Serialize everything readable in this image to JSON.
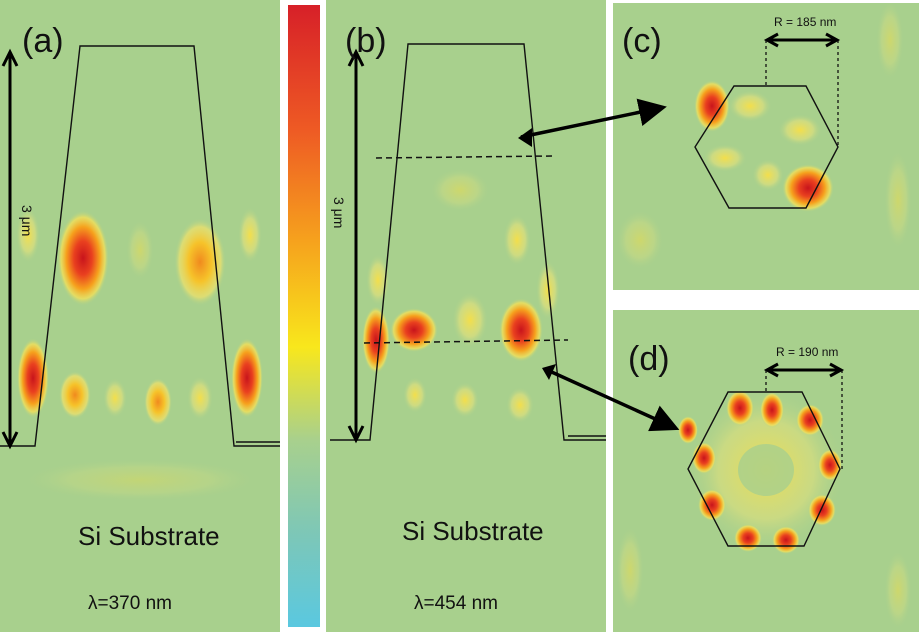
{
  "panels": {
    "a": {
      "label": "(a)",
      "scale": "3 μm",
      "substrate": "Si Substrate",
      "wavelength": "λ=370 nm"
    },
    "b": {
      "label": "(b)",
      "scale": "3 μm",
      "substrate": "Si Substrate",
      "wavelength": "λ=454 nm"
    },
    "c": {
      "label": "(c)",
      "radius": "R = 185 nm"
    },
    "d": {
      "label": "(d)",
      "radius": "R = 190 nm"
    }
  },
  "colors": {
    "background_field": "#a8d08d",
    "colorbar_top": "#d72028",
    "colorbar_mid": "#f8e71c",
    "colorbar_bottom": "#5ac8e0",
    "hot": "#d72028",
    "warm": "#f7a21b",
    "mild": "#f6e35a"
  }
}
